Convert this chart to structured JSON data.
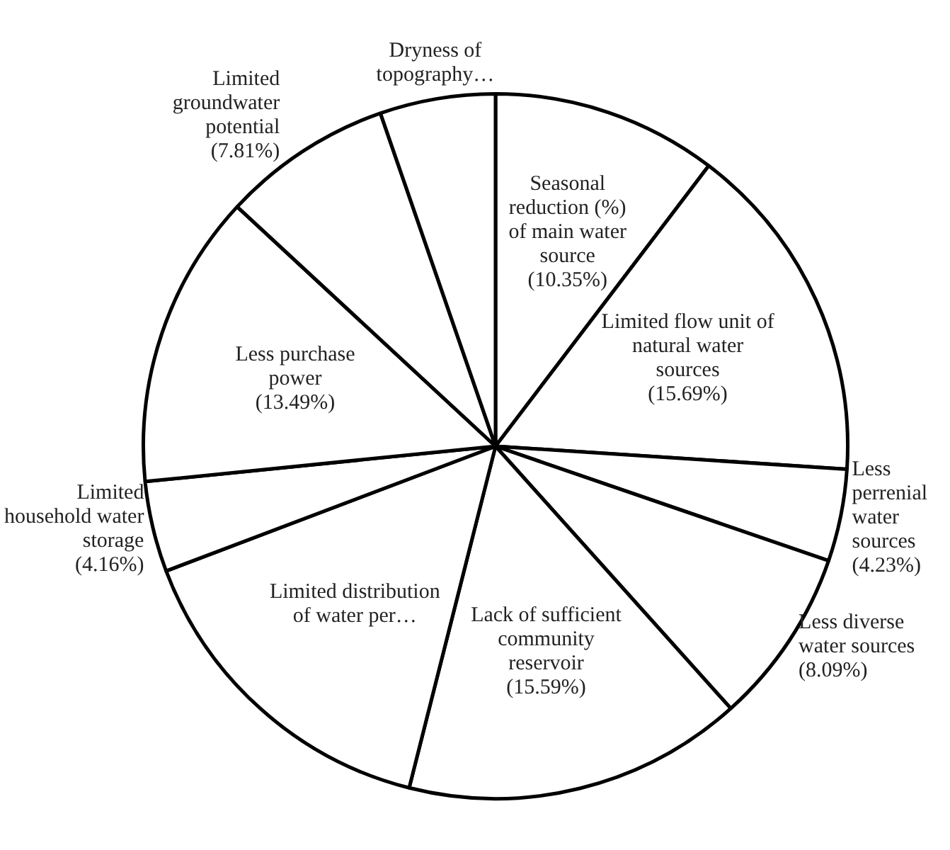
{
  "chart_data": {
    "type": "pie",
    "categories": [
      "Seasonal reduction (%) of main water source",
      "Limited flow unit of natural water sources",
      "Less perrenial water sources",
      "Less diverse water sources",
      "Lack of sufficient community reservoir",
      "Limited distribution of water per…",
      "Limited household water storage",
      "Less purchase power",
      "Limited groundwater potential",
      "Dryness of topography…"
    ],
    "values": [
      10.35,
      15.69,
      4.23,
      8.09,
      15.59,
      15.3,
      4.16,
      13.49,
      7.81,
      5.3
    ],
    "colors": [
      "#ffffff",
      "#ffffff",
      "#ffffff",
      "#ffffff",
      "#ffffff",
      "#ffffff",
      "#ffffff",
      "#ffffff",
      "#ffffff",
      "#ffffff"
    ],
    "value_labels": [
      "(10.35%)",
      "(15.69%)",
      "(4.23%)",
      "(8.09%)",
      "(15.59%)",
      null,
      "(4.16%)",
      "(13.49%)",
      "(7.81%)",
      null
    ]
  }
}
